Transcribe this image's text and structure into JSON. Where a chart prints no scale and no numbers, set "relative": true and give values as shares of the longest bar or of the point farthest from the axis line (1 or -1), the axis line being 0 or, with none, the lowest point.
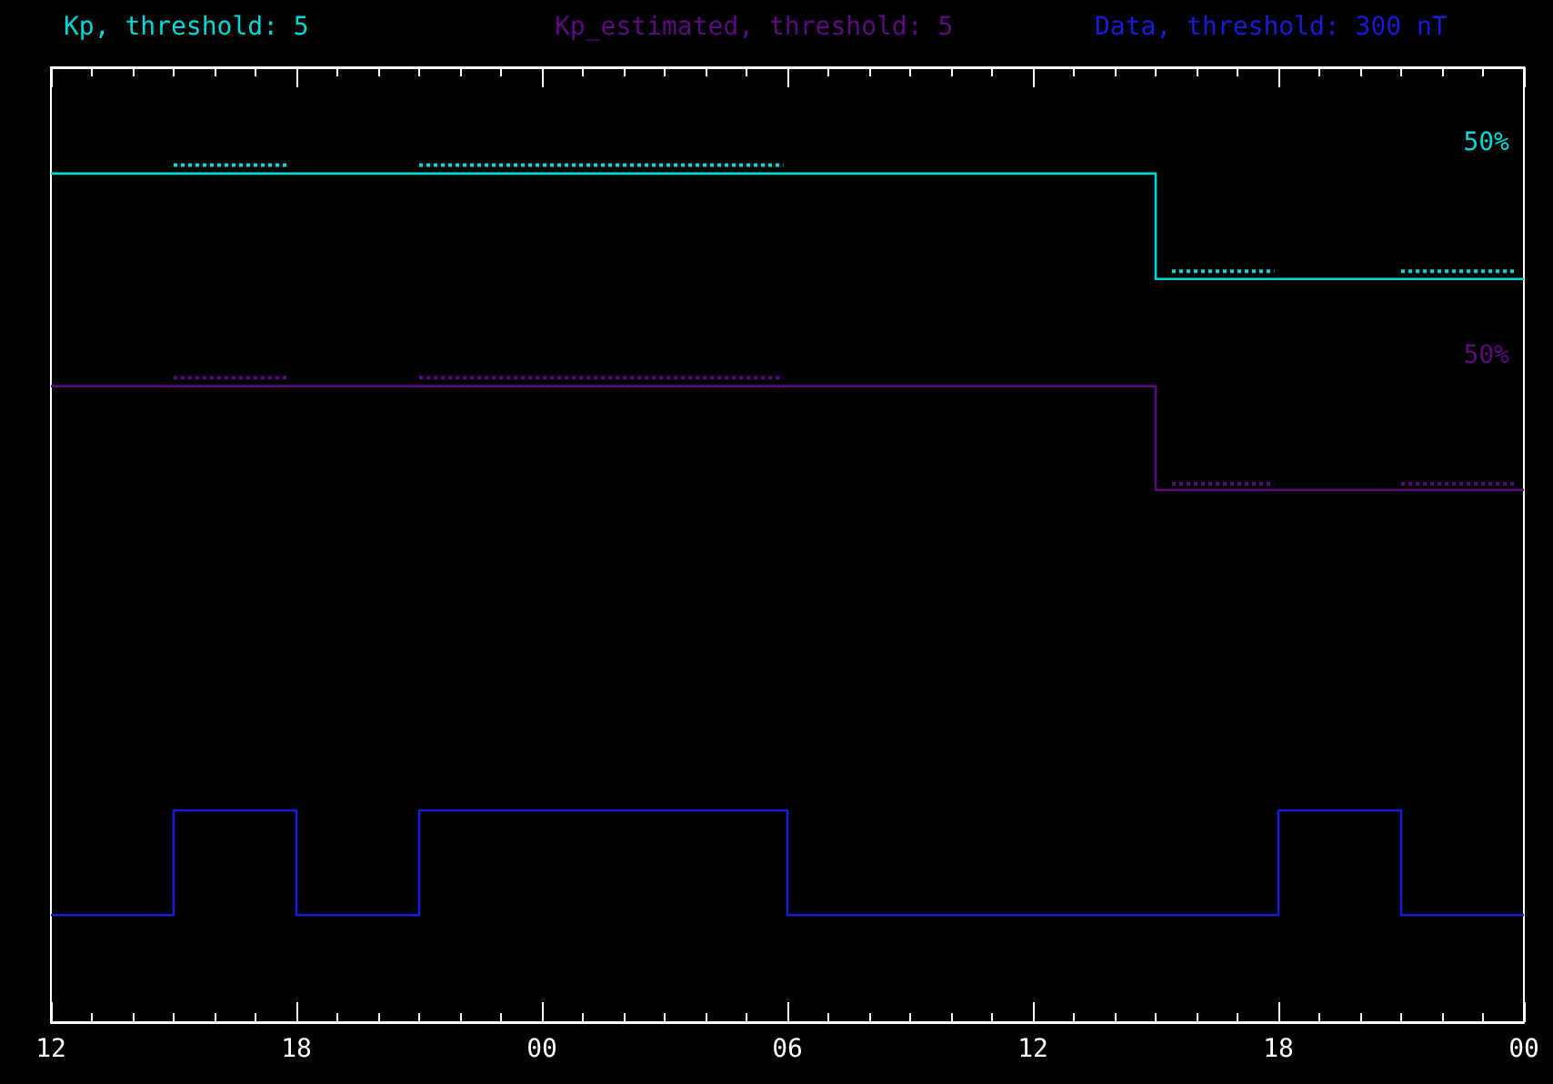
{
  "chart_data": {
    "type": "step",
    "relative": true,
    "xlim": [
      12,
      48
    ],
    "xticks": [
      {
        "value": 12,
        "label": "12"
      },
      {
        "value": 18,
        "label": "18"
      },
      {
        "value": 24,
        "label": "00"
      },
      {
        "value": 30,
        "label": "06"
      },
      {
        "value": 36,
        "label": "12"
      },
      {
        "value": 42,
        "label": "18"
      },
      {
        "value": 48,
        "label": "00"
      }
    ],
    "series": [
      {
        "name": "Kp, threshold: 5",
        "color": "#00d8d8",
        "x": [
          12,
          39,
          48
        ],
        "values": [
          0.99,
          0.867,
          0.867
        ]
      },
      {
        "name": "Kp_estimated, threshold: 5",
        "color": "#5c0a80",
        "x": [
          12,
          39,
          48
        ],
        "values": [
          0.742,
          0.621,
          0.621
        ]
      },
      {
        "name": "Data, threshold: 300 nT",
        "color": "#1a1ad8",
        "x": [
          12,
          15,
          18,
          21,
          30,
          42,
          45,
          48
        ],
        "values": [
          0.125,
          0.247,
          0.125,
          0.247,
          0.125,
          0.247,
          0.125,
          0.125
        ]
      },
      {
        "type": "line",
        "line_style": "dotted",
        "color": "#00d8d8",
        "x": [
          15,
          17.8,
          19,
          21,
          29.9,
          35,
          39.4,
          41.9,
          43.5,
          45,
          47.8
        ],
        "values": [
          1,
          1,
          null,
          1,
          1,
          null,
          0.876,
          0.876,
          null,
          0.876,
          0.876
        ]
      },
      {
        "type": "line",
        "line_style": "dotted",
        "color": "#5c0a80",
        "x": [
          15,
          17.8,
          19,
          21,
          29.9,
          35,
          39.4,
          41.9,
          43.5,
          45,
          47.8
        ],
        "values": [
          0.752,
          0.752,
          null,
          0.752,
          0.752,
          null,
          0.628,
          0.628,
          null,
          0.628,
          0.628
        ]
      }
    ],
    "annotations": [
      "50%",
      "50%"
    ],
    "legend": "top",
    "grid": false,
    "marker": "none"
  }
}
